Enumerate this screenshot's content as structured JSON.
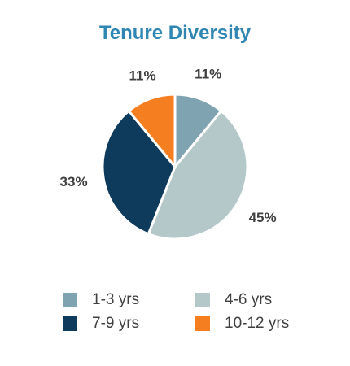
{
  "chart_data": {
    "type": "pie",
    "title": "Tenure Diversity",
    "categories": [
      "1-3 yrs",
      "4-6 yrs",
      "7-9 yrs",
      "10-12 yrs"
    ],
    "values": [
      11,
      45,
      33,
      11
    ],
    "labels": [
      "11%",
      "45%",
      "33%",
      "11%"
    ],
    "colors": [
      "#7fa3b1",
      "#b4c8ca",
      "#0e3a5c",
      "#f57e20"
    ],
    "legend_placement": "bottom"
  }
}
